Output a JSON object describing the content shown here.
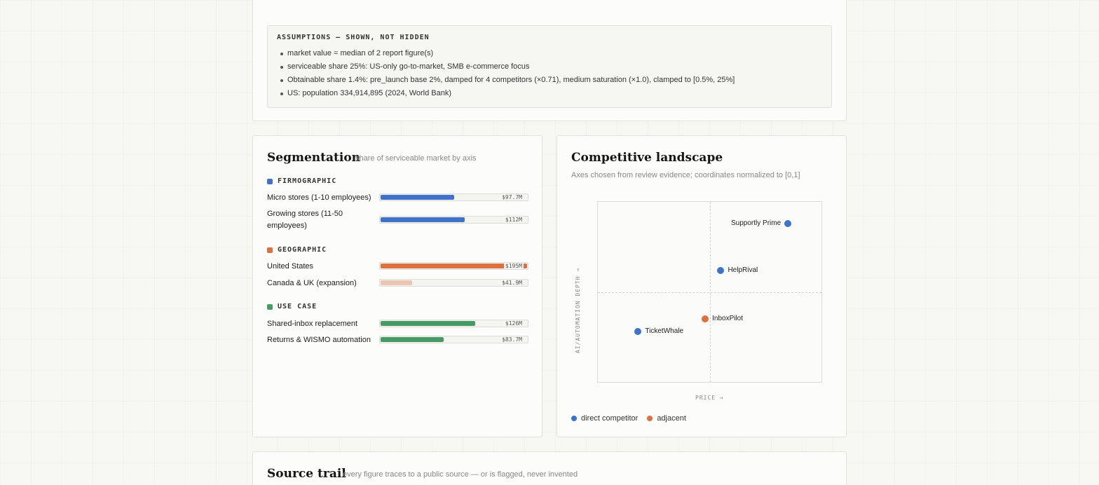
{
  "assumptions": {
    "heading": "ASSUMPTIONS — SHOWN, NOT HIDDEN",
    "items": [
      "market value = median of 2 report figure(s)",
      "serviceable share 25%: US-only go-to-market, SMB e-commerce focus",
      "Obtainable share 1.4%: pre_launch base 2%, damped for 4 competitors (×0.71), medium saturation (×1.0), clamped to [0.5%, 25%]",
      "US: population 334,914,895 (2024, World Bank)"
    ]
  },
  "segmentation": {
    "title": "Segmentation",
    "subtitle": "share of serviceable market by axis",
    "groups": [
      {
        "label": "FIRMOGRAPHIC",
        "color": "#3f73c9",
        "rows": [
          {
            "label": "Micro stores (1-10 employees)",
            "value_label": "$97.7M",
            "value_m": 97.7
          },
          {
            "label": "Growing stores (11-50 employees)",
            "value_label": "$112M",
            "value_m": 112
          }
        ]
      },
      {
        "label": "GEOGRAPHIC",
        "color": "#de6f3f",
        "rows": [
          {
            "label": "United States",
            "value_label": "$195M",
            "value_m": 195
          },
          {
            "label": "Canada & UK (expansion)",
            "value_label": "$41.9M",
            "value_m": 41.9,
            "muted": true
          }
        ]
      },
      {
        "label": "USE CASE",
        "color": "#459a66",
        "rows": [
          {
            "label": "Shared-inbox replacement",
            "value_label": "$126M",
            "value_m": 126
          },
          {
            "label": "Returns & WISMO automation",
            "value_label": "$83.7M",
            "value_m": 83.7
          }
        ]
      }
    ]
  },
  "landscape": {
    "title": "Competitive landscape",
    "subtitle": "Axes chosen from review evidence; coordinates normalized to [0,1]",
    "y_label": "AI/AUTOMATION DEPTH →",
    "x_label": "PRICE →",
    "colors": {
      "direct": "#3f73c9",
      "adjacent": "#de6f3f"
    },
    "points": [
      {
        "name": "Supportly Prime",
        "x": 0.85,
        "y": 0.88,
        "kind": "direct",
        "label_side": "left"
      },
      {
        "name": "HelpRival",
        "x": 0.55,
        "y": 0.62,
        "kind": "direct",
        "label_side": "right"
      },
      {
        "name": "InboxPilot",
        "x": 0.48,
        "y": 0.35,
        "kind": "adjacent",
        "label_side": "right"
      },
      {
        "name": "TicketWhale",
        "x": 0.18,
        "y": 0.28,
        "kind": "direct",
        "label_side": "right"
      }
    ],
    "legend": [
      {
        "label": "direct competitor",
        "kind": "direct"
      },
      {
        "label": "adjacent",
        "kind": "adjacent"
      }
    ]
  },
  "source_trail": {
    "title": "Source trail",
    "subtitle": "every figure traces to a public source — or is flagged, never invented"
  }
}
